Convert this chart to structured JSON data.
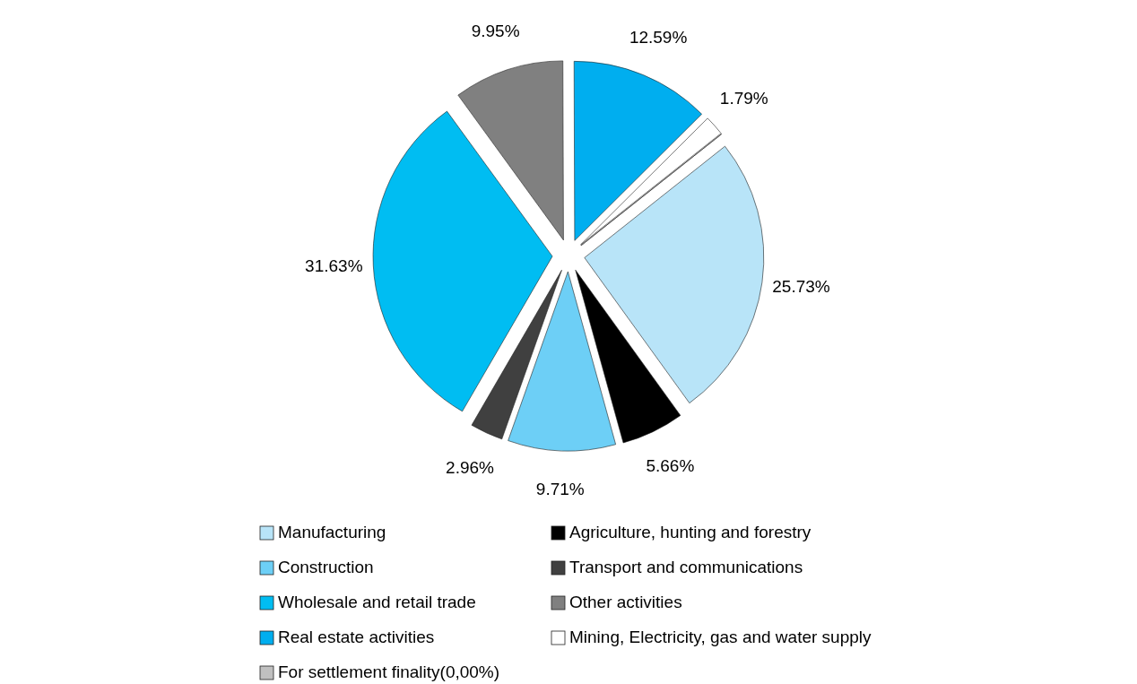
{
  "chart_data": {
    "type": "pie",
    "categories": [
      "Manufacturing",
      "Agriculture, hunting and forestry",
      "Construction",
      "Transport and communications",
      "Wholesale and retail trade",
      "Other activities",
      "Real estate activities",
      "Mining, Electricity, gas and water supply",
      "For settlement finality(0,00%)"
    ],
    "values": [
      25.73,
      5.66,
      9.71,
      2.96,
      31.63,
      9.95,
      12.59,
      1.79,
      0
    ],
    "colors": [
      "#b8e4f8",
      "#000000",
      "#6dcff6",
      "#404040",
      "#00bdf2",
      "#808080",
      "#00aeef",
      "#ffffff",
      "#c0c0c0"
    ],
    "value_labels": [
      "25.73%",
      "5.66%",
      "9.71%",
      "2.96%",
      "31.63%",
      "9.95%",
      "12.59%",
      "1.79%",
      null
    ],
    "legend": "bottom"
  }
}
